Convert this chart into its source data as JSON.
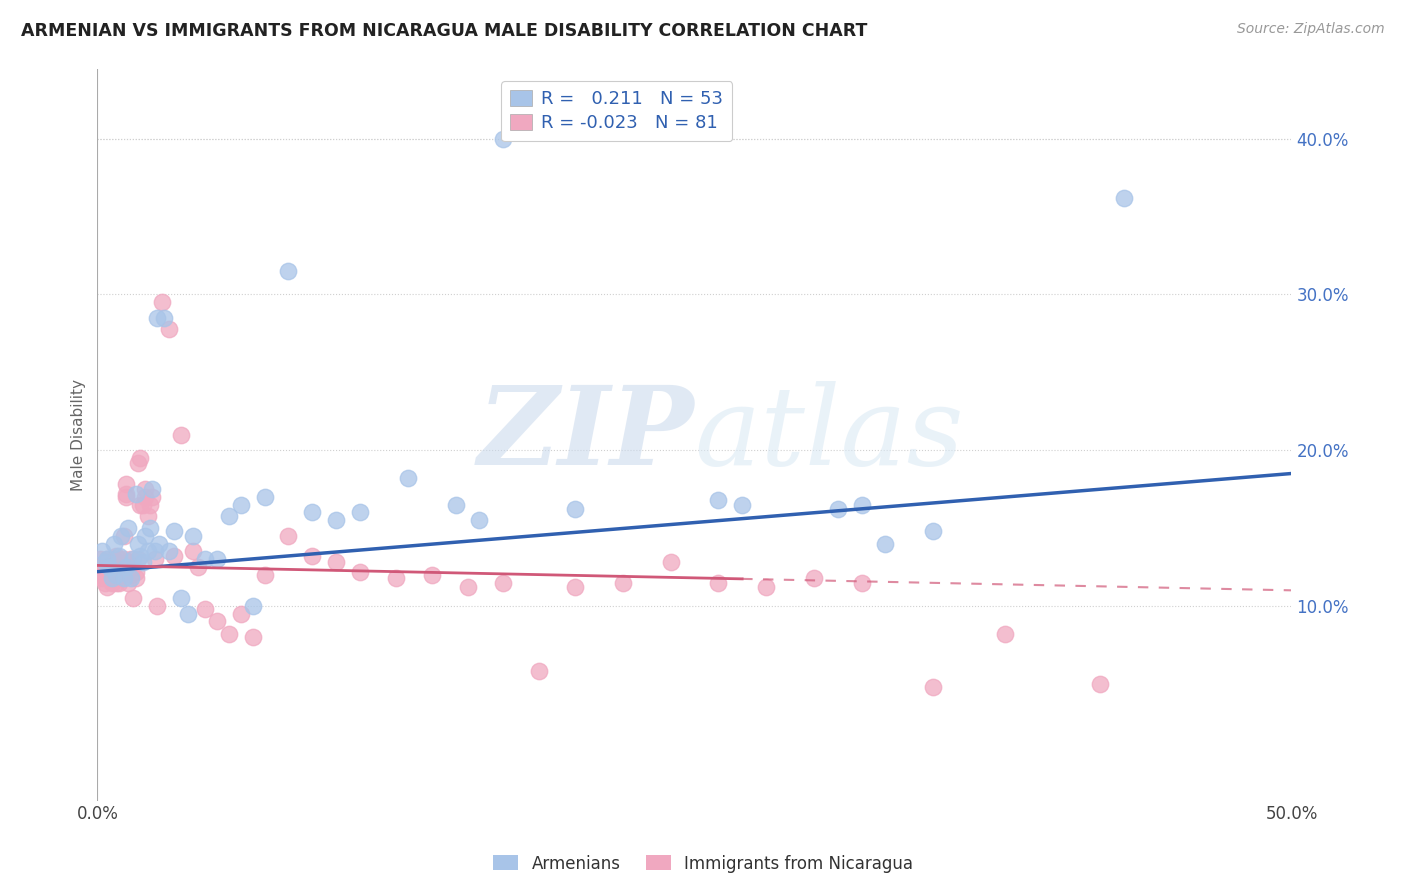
{
  "title": "ARMENIAN VS IMMIGRANTS FROM NICARAGUA MALE DISABILITY CORRELATION CHART",
  "source": "Source: ZipAtlas.com",
  "ylabel": "Male Disability",
  "xlim": [
    0.0,
    0.5
  ],
  "ylim": [
    -0.025,
    0.445
  ],
  "xticks": [
    0.0,
    0.1,
    0.2,
    0.3,
    0.4,
    0.5
  ],
  "xtick_labels": [
    "0.0%",
    "",
    "",
    "",
    "",
    "50.0%"
  ],
  "yticks": [
    0.1,
    0.2,
    0.3,
    0.4
  ],
  "ytick_labels": [
    "10.0%",
    "20.0%",
    "30.0%",
    "40.0%"
  ],
  "grid_color": "#d0d0d0",
  "watermark_zip": "ZIP",
  "watermark_atlas": "atlas",
  "legend_R1": " 0.211",
  "legend_N1": "53",
  "legend_R2": "-0.023",
  "legend_N2": "81",
  "armenians_color": "#a8c4e8",
  "nicaragua_color": "#f0a8c0",
  "line1_color": "#3060b0",
  "line2_color": "#d05878",
  "line1_start_y": 0.122,
  "line1_end_y": 0.185,
  "line2_start_y": 0.126,
  "line2_end_y": 0.11,
  "line2_solid_end_x": 0.27,
  "armenians_x": [
    0.002,
    0.003,
    0.004,
    0.005,
    0.006,
    0.007,
    0.008,
    0.009,
    0.01,
    0.011,
    0.012,
    0.013,
    0.014,
    0.015,
    0.016,
    0.017,
    0.018,
    0.019,
    0.02,
    0.021,
    0.022,
    0.023,
    0.024,
    0.025,
    0.026,
    0.028,
    0.03,
    0.032,
    0.035,
    0.038,
    0.04,
    0.045,
    0.05,
    0.055,
    0.06,
    0.065,
    0.07,
    0.08,
    0.09,
    0.1,
    0.11,
    0.13,
    0.15,
    0.16,
    0.17,
    0.2,
    0.26,
    0.27,
    0.31,
    0.32,
    0.33,
    0.35,
    0.43
  ],
  "armenians_y": [
    0.135,
    0.128,
    0.13,
    0.125,
    0.118,
    0.14,
    0.12,
    0.132,
    0.145,
    0.118,
    0.125,
    0.15,
    0.118,
    0.13,
    0.172,
    0.14,
    0.132,
    0.128,
    0.145,
    0.135,
    0.15,
    0.175,
    0.135,
    0.285,
    0.14,
    0.285,
    0.135,
    0.148,
    0.105,
    0.095,
    0.145,
    0.13,
    0.13,
    0.158,
    0.165,
    0.1,
    0.17,
    0.315,
    0.16,
    0.155,
    0.16,
    0.182,
    0.165,
    0.155,
    0.4,
    0.162,
    0.168,
    0.165,
    0.162,
    0.165,
    0.14,
    0.148,
    0.362
  ],
  "nicaragua_x": [
    0.001,
    0.001,
    0.002,
    0.002,
    0.003,
    0.003,
    0.004,
    0.004,
    0.005,
    0.005,
    0.005,
    0.006,
    0.006,
    0.007,
    0.007,
    0.007,
    0.008,
    0.008,
    0.008,
    0.009,
    0.009,
    0.01,
    0.01,
    0.01,
    0.011,
    0.011,
    0.012,
    0.012,
    0.012,
    0.013,
    0.013,
    0.013,
    0.014,
    0.014,
    0.015,
    0.015,
    0.016,
    0.016,
    0.017,
    0.017,
    0.018,
    0.018,
    0.019,
    0.02,
    0.02,
    0.021,
    0.022,
    0.023,
    0.024,
    0.025,
    0.027,
    0.03,
    0.032,
    0.035,
    0.04,
    0.042,
    0.045,
    0.05,
    0.055,
    0.06,
    0.065,
    0.07,
    0.08,
    0.09,
    0.1,
    0.11,
    0.125,
    0.14,
    0.155,
    0.17,
    0.185,
    0.2,
    0.22,
    0.24,
    0.26,
    0.28,
    0.3,
    0.32,
    0.35,
    0.38,
    0.42
  ],
  "nicaragua_y": [
    0.12,
    0.13,
    0.118,
    0.125,
    0.115,
    0.122,
    0.13,
    0.112,
    0.125,
    0.118,
    0.122,
    0.115,
    0.128,
    0.12,
    0.118,
    0.13,
    0.132,
    0.115,
    0.122,
    0.13,
    0.115,
    0.125,
    0.12,
    0.122,
    0.13,
    0.145,
    0.178,
    0.172,
    0.17,
    0.128,
    0.124,
    0.115,
    0.13,
    0.12,
    0.105,
    0.125,
    0.118,
    0.122,
    0.192,
    0.13,
    0.195,
    0.165,
    0.165,
    0.17,
    0.175,
    0.158,
    0.165,
    0.17,
    0.13,
    0.1,
    0.295,
    0.278,
    0.132,
    0.21,
    0.135,
    0.125,
    0.098,
    0.09,
    0.082,
    0.095,
    0.08,
    0.12,
    0.145,
    0.132,
    0.128,
    0.122,
    0.118,
    0.12,
    0.112,
    0.115,
    0.058,
    0.112,
    0.115,
    0.128,
    0.115,
    0.112,
    0.118,
    0.115,
    0.048,
    0.082,
    0.05
  ]
}
